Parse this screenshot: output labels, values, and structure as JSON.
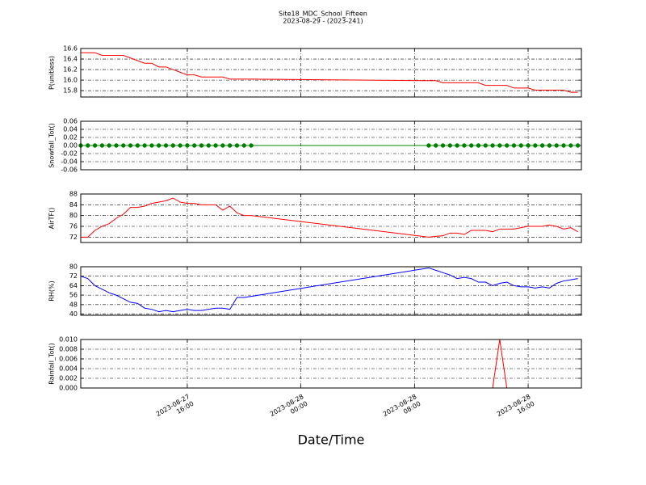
{
  "title": "Site18_MDC_School_Fifteen",
  "subtitle": "2023-08-29 - (2023-241)",
  "xlabel": "Date/Time",
  "chart_data": [
    {
      "type": "line",
      "ylabel": "P(unitless)",
      "color": "#ff0000",
      "x": [
        "2023-08-27 08:30",
        "2023-08-27 09:00",
        "2023-08-27 09:30",
        "2023-08-27 10:00",
        "2023-08-27 10:30",
        "2023-08-27 11:00",
        "2023-08-27 11:30",
        "2023-08-27 12:00",
        "2023-08-27 12:30",
        "2023-08-27 13:00",
        "2023-08-27 13:30",
        "2023-08-27 14:00",
        "2023-08-27 14:30",
        "2023-08-27 15:00",
        "2023-08-27 15:30",
        "2023-08-27 16:00",
        "2023-08-27 16:30",
        "2023-08-27 17:00",
        "2023-08-27 17:30",
        "2023-08-27 18:00",
        "2023-08-27 18:30",
        "2023-08-27 19:00",
        "2023-08-27 19:30",
        "2023-08-27 20:00",
        "2023-08-27 20:30",
        "2023-08-28 09:00",
        "2023-08-28 09:30",
        "2023-08-28 10:00",
        "2023-08-28 10:30",
        "2023-08-28 11:00",
        "2023-08-28 11:30",
        "2023-08-28 12:00",
        "2023-08-28 12:30",
        "2023-08-28 13:00",
        "2023-08-28 13:30",
        "2023-08-28 14:00",
        "2023-08-28 14:30",
        "2023-08-28 15:00",
        "2023-08-28 15:30",
        "2023-08-28 16:00",
        "2023-08-28 16:30",
        "2023-08-28 17:00",
        "2023-08-28 17:30",
        "2023-08-28 18:00",
        "2023-08-28 18:30",
        "2023-08-28 19:00",
        "2023-08-28 19:30"
      ],
      "values": [
        16.52,
        16.52,
        16.52,
        16.47,
        16.47,
        16.47,
        16.47,
        16.42,
        16.37,
        16.32,
        16.32,
        16.25,
        16.25,
        16.2,
        16.15,
        16.1,
        16.1,
        16.06,
        16.06,
        16.06,
        16.06,
        16.02,
        16.02,
        16.02,
        16.02,
        15.99,
        15.99,
        15.95,
        15.95,
        15.95,
        15.95,
        15.95,
        15.95,
        15.9,
        15.9,
        15.9,
        15.9,
        15.85,
        15.85,
        15.85,
        15.81,
        15.81,
        15.81,
        15.81,
        15.81,
        15.77,
        15.77
      ],
      "xlim": [
        "2023-08-27 08:30",
        "2023-08-28 19:45"
      ],
      "xticks": [
        "2023-08-27 16:00",
        "2023-08-28 00:00",
        "2023-08-28 08:00",
        "2023-08-28 16:00"
      ],
      "ylim": [
        15.68,
        16.6
      ],
      "yticks": [
        15.8,
        {
          "value": 16.0,
          "label": "16.0"
        },
        16.2,
        16.4,
        16.6
      ],
      "grid": true
    },
    {
      "type": "line",
      "ylabel": "Snowfall_Tot()",
      "color": "#008000",
      "marker": "o",
      "x": [
        "2023-08-27 08:30",
        "2023-08-27 09:00",
        "2023-08-27 09:30",
        "2023-08-27 10:00",
        "2023-08-27 10:30",
        "2023-08-27 11:00",
        "2023-08-27 11:30",
        "2023-08-27 12:00",
        "2023-08-27 12:30",
        "2023-08-27 13:00",
        "2023-08-27 13:30",
        "2023-08-27 14:00",
        "2023-08-27 14:30",
        "2023-08-27 15:00",
        "2023-08-27 15:30",
        "2023-08-27 16:00",
        "2023-08-27 16:30",
        "2023-08-27 17:00",
        "2023-08-27 17:30",
        "2023-08-27 18:00",
        "2023-08-27 18:30",
        "2023-08-27 19:00",
        "2023-08-27 19:30",
        "2023-08-27 20:00",
        "2023-08-27 20:30",
        "2023-08-28 09:00",
        "2023-08-28 09:30",
        "2023-08-28 10:00",
        "2023-08-28 10:30",
        "2023-08-28 11:00",
        "2023-08-28 11:30",
        "2023-08-28 12:00",
        "2023-08-28 12:30",
        "2023-08-28 13:00",
        "2023-08-28 13:30",
        "2023-08-28 14:00",
        "2023-08-28 14:30",
        "2023-08-28 15:00",
        "2023-08-28 15:30",
        "2023-08-28 16:00",
        "2023-08-28 16:30",
        "2023-08-28 17:00",
        "2023-08-28 17:30",
        "2023-08-28 18:00",
        "2023-08-28 18:30",
        "2023-08-28 19:00",
        "2023-08-28 19:30"
      ],
      "values": [
        0,
        0,
        0,
        0,
        0,
        0,
        0,
        0,
        0,
        0,
        0,
        0,
        0,
        0,
        0,
        0,
        0,
        0,
        0,
        0,
        0,
        0,
        0,
        0,
        0,
        0,
        0,
        0,
        0,
        0,
        0,
        0,
        0,
        0,
        0,
        0,
        0,
        0,
        0,
        0,
        0,
        0,
        0,
        0,
        0,
        0,
        0
      ],
      "xlim": [
        "2023-08-27 08:30",
        "2023-08-28 19:45"
      ],
      "xticks": [
        "2023-08-27 16:00",
        "2023-08-28 00:00",
        "2023-08-28 08:00",
        "2023-08-28 16:00"
      ],
      "ylim": [
        -0.06,
        0.06
      ],
      "yticks": [
        -0.06,
        -0.04,
        -0.02,
        {
          "value": 0,
          "label": "0.00"
        },
        0.02,
        0.04,
        0.06
      ],
      "grid": true
    },
    {
      "type": "line",
      "ylabel": "AirTF()",
      "color": "#ff0000",
      "x": [
        "2023-08-27 08:30",
        "2023-08-27 09:00",
        "2023-08-27 09:30",
        "2023-08-27 10:00",
        "2023-08-27 10:30",
        "2023-08-27 11:00",
        "2023-08-27 11:30",
        "2023-08-27 12:00",
        "2023-08-27 12:30",
        "2023-08-27 13:00",
        "2023-08-27 13:30",
        "2023-08-27 14:00",
        "2023-08-27 14:30",
        "2023-08-27 15:00",
        "2023-08-27 15:30",
        "2023-08-27 16:00",
        "2023-08-27 16:30",
        "2023-08-27 17:00",
        "2023-08-27 17:30",
        "2023-08-27 18:00",
        "2023-08-27 18:30",
        "2023-08-27 19:00",
        "2023-08-27 19:30",
        "2023-08-27 20:00",
        "2023-08-27 20:30",
        "2023-08-28 09:00",
        "2023-08-28 09:30",
        "2023-08-28 10:00",
        "2023-08-28 10:30",
        "2023-08-28 11:00",
        "2023-08-28 11:30",
        "2023-08-28 12:00",
        "2023-08-28 12:30",
        "2023-08-28 13:00",
        "2023-08-28 13:30",
        "2023-08-28 14:00",
        "2023-08-28 14:30",
        "2023-08-28 15:00",
        "2023-08-28 15:30",
        "2023-08-28 16:00",
        "2023-08-28 16:30",
        "2023-08-28 17:00",
        "2023-08-28 17:30",
        "2023-08-28 18:00",
        "2023-08-28 18:30",
        "2023-08-28 19:00",
        "2023-08-28 19:30"
      ],
      "values": [
        72,
        72,
        74.5,
        76,
        77,
        79,
        80.5,
        83,
        83,
        83.5,
        84.5,
        85,
        85.5,
        86.5,
        85,
        84.5,
        84.5,
        84,
        84,
        84,
        82,
        83.5,
        81,
        80,
        80,
        72,
        72.3,
        72.5,
        73.5,
        73.5,
        73,
        74.5,
        74.5,
        74.5,
        74,
        75,
        75,
        75,
        75.5,
        76,
        76,
        76,
        76.5,
        76,
        75,
        75.5,
        74
      ],
      "xlim": [
        "2023-08-27 08:30",
        "2023-08-28 19:45"
      ],
      "xticks": [
        "2023-08-27 16:00",
        "2023-08-28 00:00",
        "2023-08-28 08:00",
        "2023-08-28 16:00"
      ],
      "ylim": [
        70,
        88
      ],
      "yticks": [
        72,
        76,
        80,
        84,
        88
      ],
      "grid": true
    },
    {
      "type": "line",
      "ylabel": "RH(%)",
      "color": "#0000ff",
      "x": [
        "2023-08-27 08:30",
        "2023-08-27 09:00",
        "2023-08-27 09:30",
        "2023-08-27 10:00",
        "2023-08-27 10:30",
        "2023-08-27 11:00",
        "2023-08-27 11:30",
        "2023-08-27 12:00",
        "2023-08-27 12:30",
        "2023-08-27 13:00",
        "2023-08-27 13:30",
        "2023-08-27 14:00",
        "2023-08-27 14:30",
        "2023-08-27 15:00",
        "2023-08-27 15:30",
        "2023-08-27 16:00",
        "2023-08-27 16:30",
        "2023-08-27 17:00",
        "2023-08-27 17:30",
        "2023-08-27 18:00",
        "2023-08-27 18:30",
        "2023-08-27 19:00",
        "2023-08-27 19:30",
        "2023-08-27 20:00",
        "2023-08-27 20:30",
        "2023-08-28 09:00",
        "2023-08-28 09:30",
        "2023-08-28 10:00",
        "2023-08-28 10:30",
        "2023-08-28 11:00",
        "2023-08-28 11:30",
        "2023-08-28 12:00",
        "2023-08-28 12:30",
        "2023-08-28 13:00",
        "2023-08-28 13:30",
        "2023-08-28 14:00",
        "2023-08-28 14:30",
        "2023-08-28 15:00",
        "2023-08-28 15:30",
        "2023-08-28 16:00",
        "2023-08-28 16:30",
        "2023-08-28 17:00",
        "2023-08-28 17:30",
        "2023-08-28 18:00",
        "2023-08-28 18:30",
        "2023-08-28 19:00",
        "2023-08-28 19:30"
      ],
      "values": [
        72,
        70,
        64,
        61,
        58,
        56,
        53,
        50,
        49,
        45,
        44,
        42,
        43,
        42,
        43,
        44,
        43,
        43,
        44,
        45,
        45,
        44,
        54,
        54,
        55,
        79,
        77,
        75,
        73,
        70,
        71,
        70,
        67,
        67,
        64,
        66,
        67,
        64,
        63,
        63,
        62,
        63,
        62,
        66,
        68,
        69,
        70
      ],
      "xlim": [
        "2023-08-27 08:30",
        "2023-08-28 19:45"
      ],
      "xticks": [
        "2023-08-27 16:00",
        "2023-08-28 00:00",
        "2023-08-28 08:00",
        "2023-08-28 16:00"
      ],
      "ylim": [
        39,
        80
      ],
      "yticks": [
        40,
        48,
        56,
        64,
        72,
        80
      ],
      "grid": true
    },
    {
      "type": "line",
      "ylabel": "Rainfall_Tot()",
      "color": "#ff0000",
      "x": [
        "2023-08-27 08:30",
        "2023-08-27 09:00",
        "2023-08-27 09:30",
        "2023-08-27 10:00",
        "2023-08-27 10:30",
        "2023-08-27 11:00",
        "2023-08-27 11:30",
        "2023-08-27 12:00",
        "2023-08-27 12:30",
        "2023-08-27 13:00",
        "2023-08-27 13:30",
        "2023-08-27 14:00",
        "2023-08-27 14:30",
        "2023-08-27 15:00",
        "2023-08-27 15:30",
        "2023-08-27 16:00",
        "2023-08-27 16:30",
        "2023-08-27 17:00",
        "2023-08-27 17:30",
        "2023-08-27 18:00",
        "2023-08-27 18:30",
        "2023-08-27 19:00",
        "2023-08-27 19:30",
        "2023-08-27 20:00",
        "2023-08-27 20:30",
        "2023-08-28 09:00",
        "2023-08-28 09:30",
        "2023-08-28 10:00",
        "2023-08-28 10:30",
        "2023-08-28 11:00",
        "2023-08-28 11:30",
        "2023-08-28 12:00",
        "2023-08-28 12:30",
        "2023-08-28 13:00",
        "2023-08-28 13:30",
        "2023-08-28 14:00",
        "2023-08-28 14:30",
        "2023-08-28 15:00",
        "2023-08-28 15:30",
        "2023-08-28 16:00",
        "2023-08-28 16:30",
        "2023-08-28 17:00",
        "2023-08-28 17:30",
        "2023-08-28 18:00",
        "2023-08-28 18:30",
        "2023-08-28 19:00",
        "2023-08-28 19:30"
      ],
      "values": [
        0,
        0,
        0,
        0,
        0,
        0,
        0,
        0,
        0,
        0,
        0,
        0,
        0,
        0,
        0,
        0,
        0,
        0,
        0,
        0,
        0,
        0,
        0,
        0,
        0,
        0,
        0,
        0,
        0,
        0,
        0,
        0,
        0,
        0,
        0,
        0.01,
        0,
        0,
        0,
        0,
        0,
        0,
        0,
        0,
        0,
        0,
        0
      ],
      "xlim": [
        "2023-08-27 08:30",
        "2023-08-28 19:45"
      ],
      "xticks": [
        {
          "value": "2023-08-27 16:00",
          "label": "2023-08-27\n16:00"
        },
        {
          "value": "2023-08-28 00:00",
          "label": "2023-08-28\n00:00"
        },
        {
          "value": "2023-08-28 08:00",
          "label": "2023-08-28\n08:00"
        },
        {
          "value": "2023-08-28 16:00",
          "label": "2023-08-28\n16:00"
        }
      ],
      "ylim": [
        0,
        0.01
      ],
      "yticks": [
        {
          "value": 0,
          "label": "0.000"
        },
        0.002,
        0.004,
        0.006,
        0.008,
        {
          "value": 0.01,
          "label": "0.010"
        }
      ],
      "grid": true
    }
  ]
}
